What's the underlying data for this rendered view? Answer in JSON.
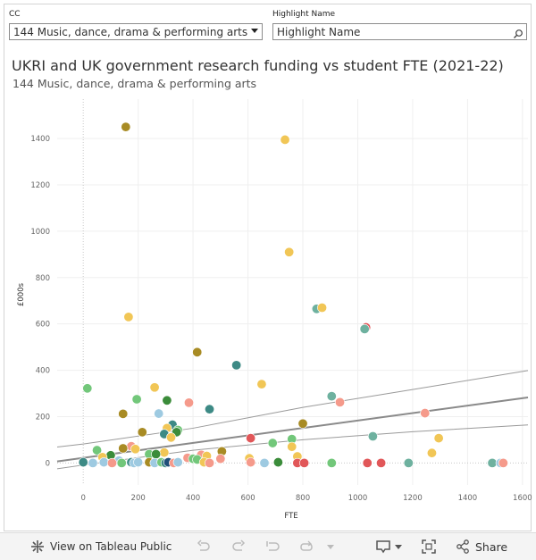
{
  "filters": {
    "cc_label": "CC",
    "cc_value": "144 Music, dance, drama & performing arts",
    "highlight_label": "Highlight Name",
    "highlight_placeholder": "Highlight Name"
  },
  "toolbar": {
    "view_label": "View on Tableau Public",
    "share_label": "Share"
  },
  "chart_data": {
    "type": "scatter",
    "title": "UKRI and UK government research funding vs student FTE (2021-22)",
    "subtitle": "144 Music, dance, drama & performing arts",
    "xlabel": "FTE",
    "ylabel": "£000s",
    "xlim": [
      -95,
      1620
    ],
    "ylim": [
      -95,
      1570
    ],
    "xticks": [
      0,
      200,
      400,
      600,
      800,
      1000,
      1200,
      1400,
      1600
    ],
    "yticks": [
      0,
      200,
      400,
      600,
      800,
      1000,
      1200,
      1400
    ],
    "grid": true,
    "trend": {
      "x_range": [
        -95,
        1620
      ],
      "line": [
        22,
        0.161
      ],
      "upper": [
        [
          -95,
          69
        ],
        [
          0,
          82
        ],
        [
          400,
          150
        ],
        [
          800,
          240
        ],
        [
          1200,
          317
        ],
        [
          1620,
          399
        ]
      ],
      "lower": [
        [
          -95,
          -25
        ],
        [
          0,
          -9
        ],
        [
          400,
          55
        ],
        [
          800,
          100
        ],
        [
          1200,
          135
        ],
        [
          1620,
          164
        ]
      ]
    },
    "points": [
      {
        "x": 155,
        "y": 1450,
        "color": "#a88b24"
      },
      {
        "x": 735,
        "y": 1395,
        "color": "#f1c656"
      },
      {
        "x": 750,
        "y": 910,
        "color": "#f1c656"
      },
      {
        "x": 165,
        "y": 630,
        "color": "#f1c656"
      },
      {
        "x": 850,
        "y": 665,
        "color": "#6eb19f"
      },
      {
        "x": 870,
        "y": 670,
        "color": "#f1c656"
      },
      {
        "x": 1030,
        "y": 585,
        "color": "#e15759"
      },
      {
        "x": 1025,
        "y": 578,
        "color": "#6eb19f"
      },
      {
        "x": 415,
        "y": 478,
        "color": "#a88b24"
      },
      {
        "x": 558,
        "y": 422,
        "color": "#3d8a85"
      },
      {
        "x": 15,
        "y": 322,
        "color": "#72c77a"
      },
      {
        "x": 260,
        "y": 326,
        "color": "#f1c656"
      },
      {
        "x": 650,
        "y": 340,
        "color": "#f1c656"
      },
      {
        "x": 905,
        "y": 288,
        "color": "#6eb19f"
      },
      {
        "x": 195,
        "y": 275,
        "color": "#72c77a"
      },
      {
        "x": 305,
        "y": 270,
        "color": "#3b8c3a"
      },
      {
        "x": 385,
        "y": 260,
        "color": "#f59a8b"
      },
      {
        "x": 935,
        "y": 262,
        "color": "#f59a8b"
      },
      {
        "x": 460,
        "y": 232,
        "color": "#3d8a85"
      },
      {
        "x": 275,
        "y": 213,
        "color": "#9ecae1"
      },
      {
        "x": 145,
        "y": 212,
        "color": "#a88b24"
      },
      {
        "x": 1245,
        "y": 215,
        "color": "#f59a8b"
      },
      {
        "x": 800,
        "y": 170,
        "color": "#a88b24"
      },
      {
        "x": 325,
        "y": 165,
        "color": "#3d8a85"
      },
      {
        "x": 305,
        "y": 150,
        "color": "#f1c656"
      },
      {
        "x": 345,
        "y": 142,
        "color": "#72c77a"
      },
      {
        "x": 340,
        "y": 133,
        "color": "#3b8c3a"
      },
      {
        "x": 215,
        "y": 133,
        "color": "#a88b24"
      },
      {
        "x": 295,
        "y": 125,
        "color": "#3d8a85"
      },
      {
        "x": 320,
        "y": 110,
        "color": "#f1c656"
      },
      {
        "x": 610,
        "y": 107,
        "color": "#e15759"
      },
      {
        "x": 760,
        "y": 103,
        "color": "#72c77a"
      },
      {
        "x": 1055,
        "y": 115,
        "color": "#6eb19f"
      },
      {
        "x": 1295,
        "y": 107,
        "color": "#f1c656"
      },
      {
        "x": 690,
        "y": 86,
        "color": "#72c77a"
      },
      {
        "x": 760,
        "y": 70,
        "color": "#f1c656"
      },
      {
        "x": 175,
        "y": 72,
        "color": "#f59a8b"
      },
      {
        "x": 145,
        "y": 63,
        "color": "#a88b24"
      },
      {
        "x": 190,
        "y": 60,
        "color": "#f1c656"
      },
      {
        "x": 50,
        "y": 55,
        "color": "#72c77a"
      },
      {
        "x": 505,
        "y": 50,
        "color": "#a88b24"
      },
      {
        "x": 1270,
        "y": 43,
        "color": "#f1c656"
      },
      {
        "x": 295,
        "y": 45,
        "color": "#f1c656"
      },
      {
        "x": 240,
        "y": 38,
        "color": "#72c77a"
      },
      {
        "x": 265,
        "y": 38,
        "color": "#3b8c3a"
      },
      {
        "x": 100,
        "y": 33,
        "color": "#3b8c3a"
      },
      {
        "x": 430,
        "y": 35,
        "color": "#f59a8b"
      },
      {
        "x": 450,
        "y": 30,
        "color": "#f1c656"
      },
      {
        "x": 780,
        "y": 28,
        "color": "#f1c656"
      },
      {
        "x": 70,
        "y": 25,
        "color": "#f1c656"
      },
      {
        "x": 380,
        "y": 22,
        "color": "#f59a8b"
      },
      {
        "x": 605,
        "y": 20,
        "color": "#f1c656"
      },
      {
        "x": 400,
        "y": 18,
        "color": "#72c77a"
      },
      {
        "x": 415,
        "y": 15,
        "color": "#72c77a"
      },
      {
        "x": 500,
        "y": 18,
        "color": "#f59a8b"
      },
      {
        "x": 130,
        "y": 10,
        "color": "#9ecae1"
      },
      {
        "x": 0,
        "y": 3,
        "color": "#3d8a85"
      },
      {
        "x": 35,
        "y": 0,
        "color": "#9ecae1"
      },
      {
        "x": 75,
        "y": 3,
        "color": "#9ecae1"
      },
      {
        "x": 105,
        "y": 0,
        "color": "#f59a8b"
      },
      {
        "x": 140,
        "y": 0,
        "color": "#72c77a"
      },
      {
        "x": 175,
        "y": 3,
        "color": "#3d8a85"
      },
      {
        "x": 185,
        "y": 0,
        "color": "#9ecae1"
      },
      {
        "x": 200,
        "y": 3,
        "color": "#9ecae1"
      },
      {
        "x": 240,
        "y": 3,
        "color": "#a88b24"
      },
      {
        "x": 260,
        "y": 0,
        "color": "#9ecae1"
      },
      {
        "x": 285,
        "y": 3,
        "color": "#72c77a"
      },
      {
        "x": 300,
        "y": 0,
        "color": "#3d8a85"
      },
      {
        "x": 310,
        "y": 3,
        "color": "#1f4e79"
      },
      {
        "x": 330,
        "y": 0,
        "color": "#f59a8b"
      },
      {
        "x": 345,
        "y": 3,
        "color": "#9ecae1"
      },
      {
        "x": 440,
        "y": 3,
        "color": "#f1c656"
      },
      {
        "x": 460,
        "y": 0,
        "color": "#f59a8b"
      },
      {
        "x": 610,
        "y": 3,
        "color": "#f59a8b"
      },
      {
        "x": 660,
        "y": 0,
        "color": "#9ecae1"
      },
      {
        "x": 710,
        "y": 3,
        "color": "#3b8c3a"
      },
      {
        "x": 780,
        "y": 0,
        "color": "#e15759"
      },
      {
        "x": 805,
        "y": 0,
        "color": "#e15759"
      },
      {
        "x": 905,
        "y": 0,
        "color": "#72c77a"
      },
      {
        "x": 1035,
        "y": 0,
        "color": "#e15759"
      },
      {
        "x": 1085,
        "y": 0,
        "color": "#e15759"
      },
      {
        "x": 1185,
        "y": 0,
        "color": "#6eb19f"
      },
      {
        "x": 1490,
        "y": 0,
        "color": "#6eb19f"
      },
      {
        "x": 1520,
        "y": 0,
        "color": "#9ecae1"
      },
      {
        "x": 1530,
        "y": 0,
        "color": "#f59a8b"
      }
    ]
  }
}
